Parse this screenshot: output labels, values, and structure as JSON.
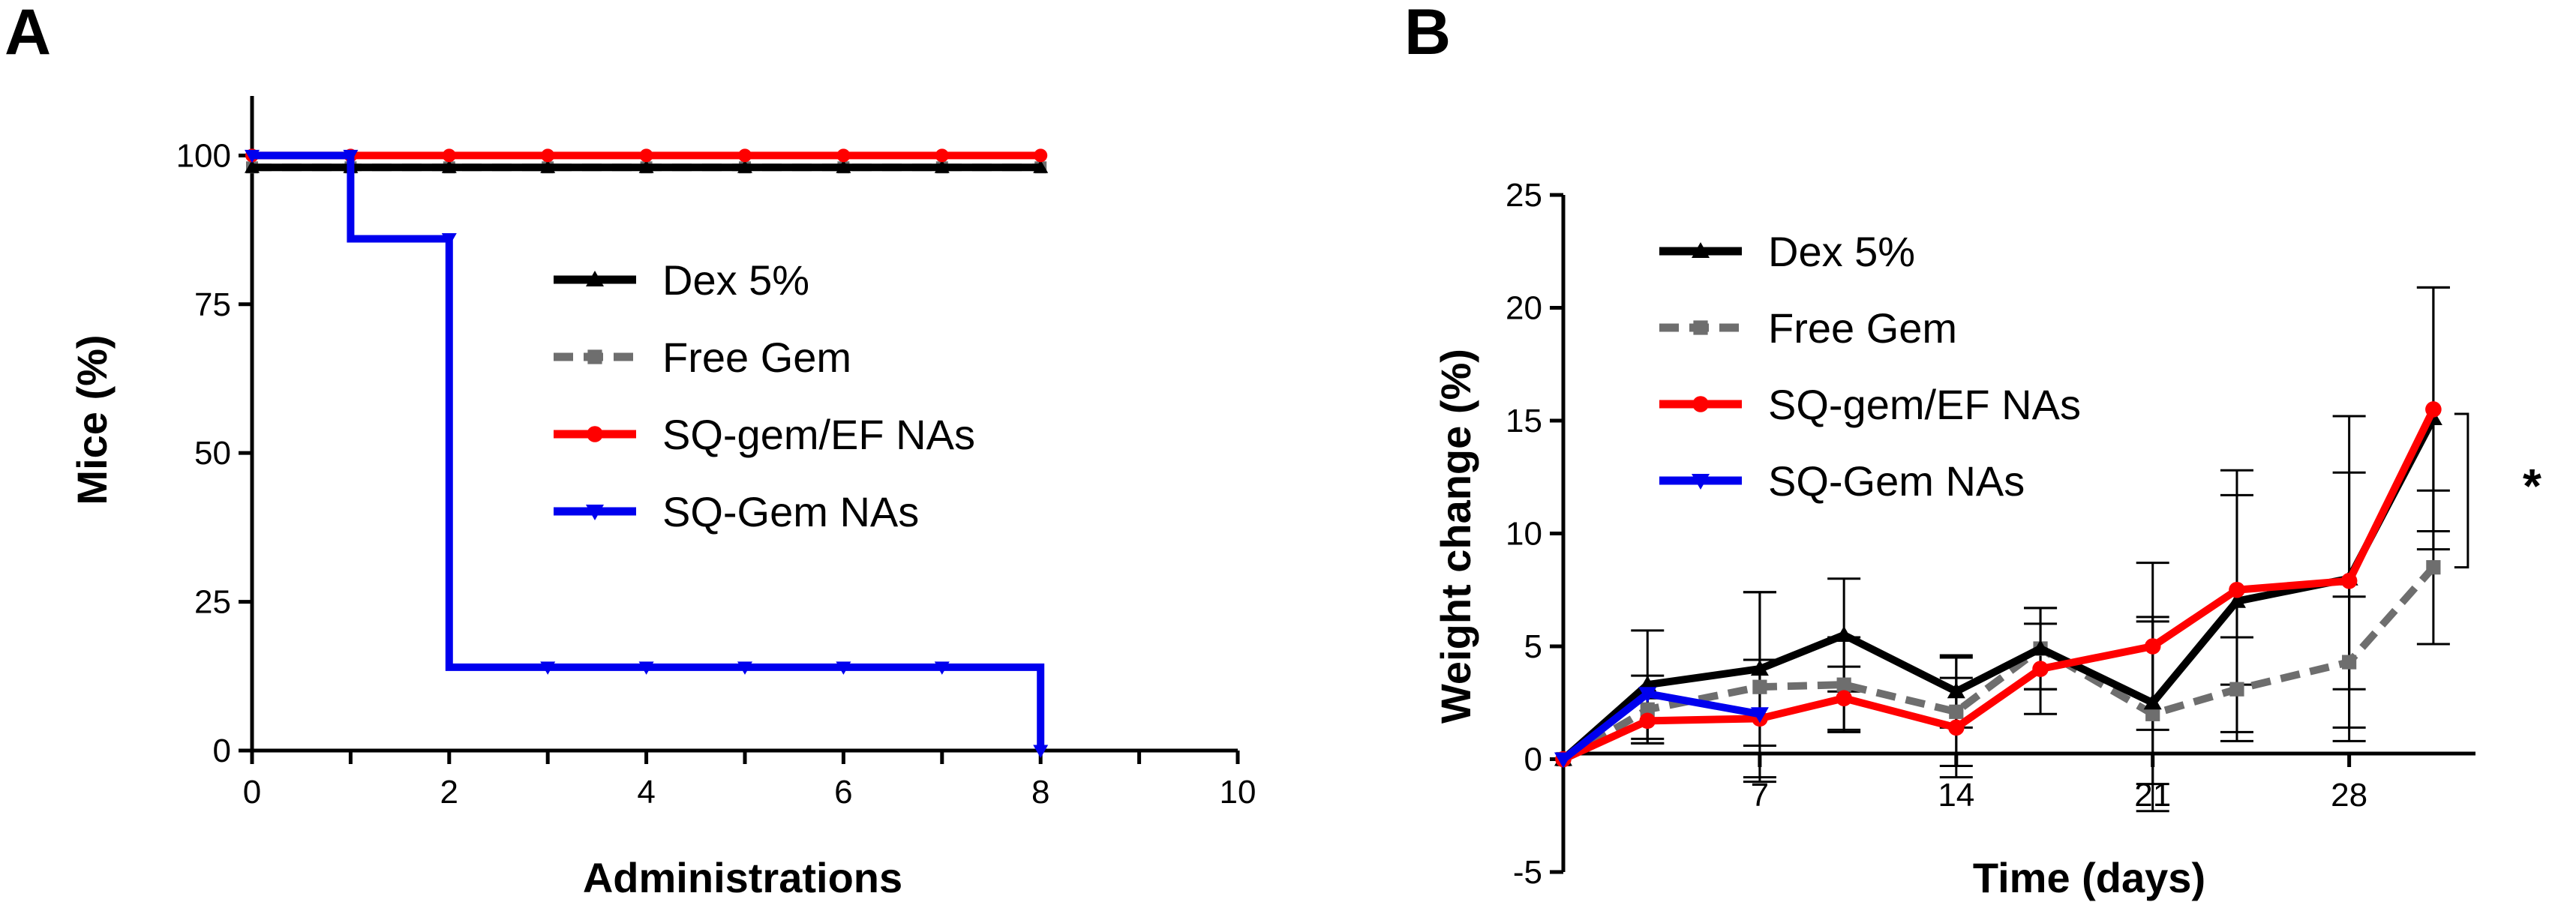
{
  "colors": {
    "dex": "#000000",
    "free_gem": "#6e6e6e",
    "sq_gem_ef": "#ff0000",
    "sq_gem": "#0000ee",
    "axis": "#000000"
  },
  "chart_data": [
    {
      "panel": "A",
      "type": "line",
      "subtype": "survival-step",
      "xlabel": "Administrations",
      "ylabel": "Mice (%)",
      "xlim": [
        0,
        10
      ],
      "ylim": [
        0,
        110
      ],
      "xticks": [
        "0",
        "2",
        "4",
        "6",
        "8",
        "10"
      ],
      "yticks": [
        "0",
        "25",
        "50",
        "75",
        "100"
      ],
      "legend": [
        "Dex 5%",
        "Free Gem",
        "SQ-gem/EF NAs",
        "SQ-Gem NAs"
      ],
      "legend_position": "center-right",
      "series": [
        {
          "name": "Dex 5%",
          "key": "dex",
          "marker": "triangle-up",
          "dash": false,
          "x": [
            0,
            1,
            2,
            3,
            4,
            5,
            6,
            7,
            8
          ],
          "y": [
            98,
            98,
            98,
            98,
            98,
            98,
            98,
            98,
            98
          ]
        },
        {
          "name": "Free Gem",
          "key": "free_gem",
          "marker": "square",
          "dash": true,
          "x": [
            0,
            1,
            2,
            3,
            4,
            5,
            6,
            7,
            8
          ],
          "y": [
            98,
            98,
            98,
            98,
            98,
            98,
            98,
            98,
            98
          ]
        },
        {
          "name": "SQ-gem/EF NAs",
          "key": "sq_gem_ef",
          "marker": "circle",
          "dash": false,
          "x": [
            0,
            1,
            2,
            3,
            4,
            5,
            6,
            7,
            8
          ],
          "y": [
            100,
            100,
            100,
            100,
            100,
            100,
            100,
            100,
            100
          ]
        },
        {
          "name": "SQ-Gem NAs",
          "key": "sq_gem",
          "marker": "triangle-down",
          "dash": false,
          "x": [
            0,
            1,
            2,
            3,
            4,
            5,
            6,
            7,
            8
          ],
          "y": [
            100,
            86,
            14,
            14,
            14,
            14,
            14,
            14,
            0
          ],
          "marker_x": [
            0,
            1,
            2,
            3,
            4,
            5,
            6,
            7,
            8
          ],
          "marker_y": [
            100,
            100,
            86,
            14,
            14,
            14,
            14,
            14,
            0
          ]
        }
      ]
    },
    {
      "panel": "B",
      "type": "line",
      "xlabel": "Time (days)",
      "ylabel": "Weight change (%)",
      "xlim": [
        0,
        32.5
      ],
      "ylim": [
        -5,
        25
      ],
      "xticks": [
        "7",
        "14",
        "21",
        "28"
      ],
      "yticks": [
        "-5",
        "0",
        "5",
        "10",
        "15",
        "20",
        "25"
      ],
      "legend": [
        "Dex 5%",
        "Free Gem",
        "SQ-gem/EF NAs",
        "SQ-Gem NAs"
      ],
      "legend_position": "top-left",
      "annotation": "*",
      "series": [
        {
          "name": "Dex 5%",
          "key": "dex",
          "marker": "triangle-up",
          "dash": false,
          "x": [
            0,
            3,
            7,
            10,
            14,
            17,
            21,
            24,
            28,
            31
          ],
          "y": [
            0,
            3.3,
            4.0,
            5.5,
            3.0,
            4.9,
            2.5,
            7.0,
            8.0,
            15.1
          ],
          "err": [
            0,
            2.4,
            3.4,
            2.5,
            1.6,
            1.8,
            3.6,
            5.8,
            7.2,
            5.8
          ]
        },
        {
          "name": "Free Gem",
          "key": "free_gem",
          "marker": "square",
          "dash": true,
          "x": [
            0,
            3,
            7,
            10,
            14,
            17,
            21,
            24,
            28,
            31
          ],
          "y": [
            0,
            2.2,
            3.2,
            3.3,
            2.1,
            4.9,
            2.0,
            3.1,
            4.3,
            8.5
          ],
          "err": [
            0,
            1.5,
            4.2,
            2.1,
            2.4,
            1.8,
            4.3,
            2.3,
            2.9,
            3.4
          ]
        },
        {
          "name": "SQ-gem/EF NAs",
          "key": "sq_gem_ef",
          "marker": "circle",
          "dash": false,
          "x": [
            0,
            3,
            7,
            10,
            14,
            17,
            21,
            24,
            28,
            31
          ],
          "y": [
            0,
            1.7,
            1.8,
            2.7,
            1.4,
            4.0,
            5.0,
            7.5,
            7.9,
            15.5
          ],
          "err": [
            0,
            1.0,
            2.6,
            1.4,
            2.2,
            2.0,
            3.7,
            4.2,
            4.8,
            5.4
          ]
        },
        {
          "name": "SQ-Gem NAs",
          "key": "sq_gem",
          "marker": "triangle-down",
          "dash": false,
          "x": [
            0,
            3,
            7
          ],
          "y": [
            0,
            2.9,
            2.0
          ],
          "err": [
            0,
            0,
            0
          ]
        }
      ]
    }
  ]
}
